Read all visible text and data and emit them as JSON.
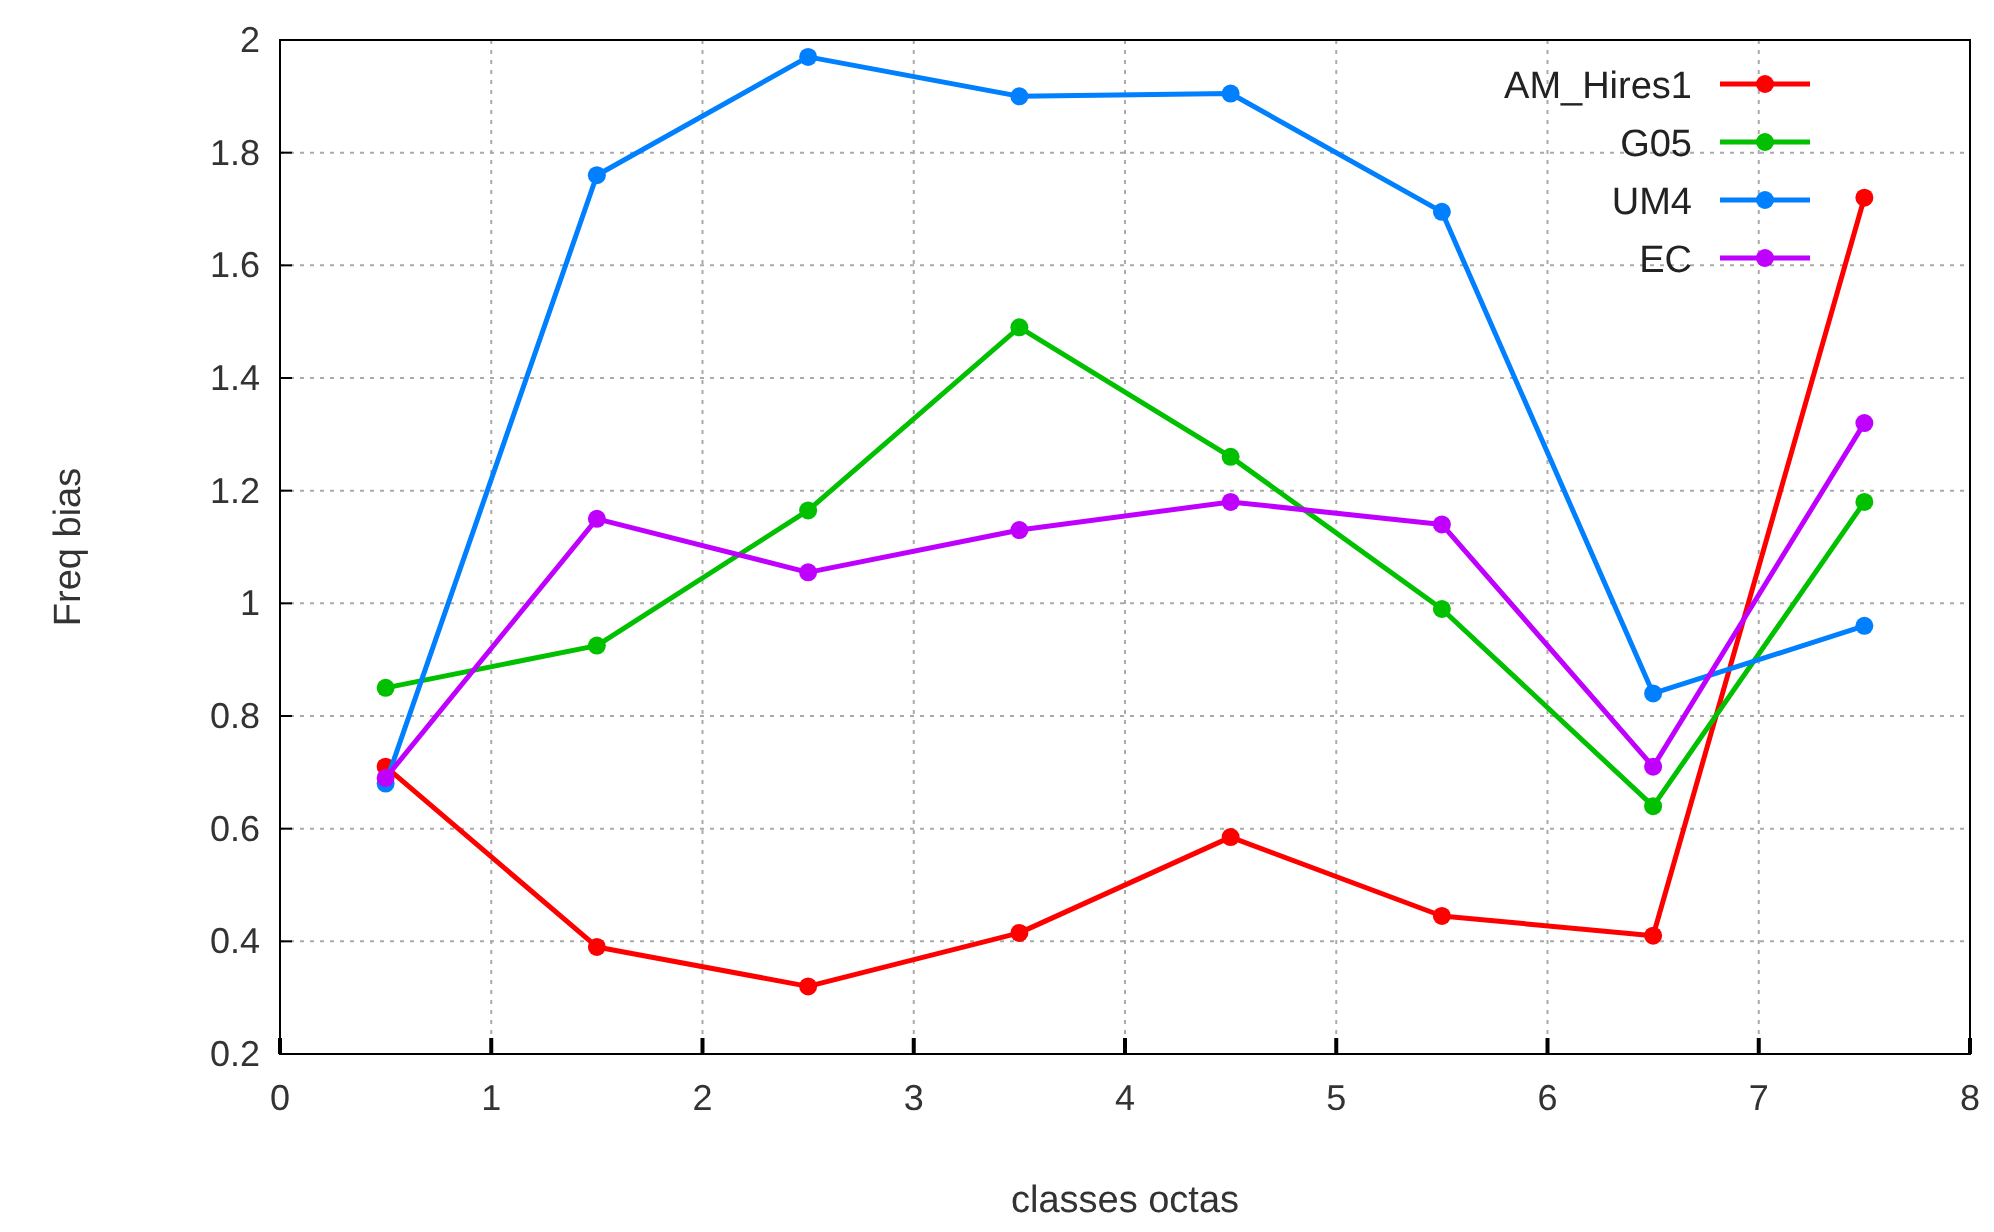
{
  "chart_data": {
    "type": "line",
    "xlabel": "classes octas",
    "ylabel": "Freq bias",
    "x": [
      0.5,
      1.5,
      2.5,
      3.5,
      4.5,
      5.5,
      6.5,
      7.5
    ],
    "series": [
      {
        "name": "AM_Hires1",
        "color": "#ff0000",
        "values": [
          0.71,
          0.39,
          0.32,
          0.415,
          0.585,
          0.445,
          0.41,
          1.72
        ]
      },
      {
        "name": "G05",
        "color": "#00c000",
        "values": [
          0.85,
          0.925,
          1.165,
          1.49,
          1.26,
          0.99,
          0.64,
          1.18
        ]
      },
      {
        "name": "UM4",
        "color": "#0080ff",
        "values": [
          0.68,
          1.76,
          1.97,
          1.9,
          1.905,
          1.695,
          0.84,
          0.96
        ]
      },
      {
        "name": "EC",
        "color": "#c000ff",
        "values": [
          0.69,
          1.15,
          1.055,
          1.13,
          1.18,
          1.14,
          0.71,
          1.32
        ]
      }
    ],
    "xlim": [
      0,
      8
    ],
    "xticks": [
      0,
      1,
      2,
      3,
      4,
      5,
      6,
      7,
      8
    ],
    "ylim": [
      0.2,
      2
    ],
    "yticks": [
      {
        "value": 0.2,
        "label": "0.2"
      },
      {
        "value": 0.4,
        "label": "0.4"
      },
      {
        "value": 0.6,
        "label": "0.6"
      },
      {
        "value": 0.8,
        "label": "0.8"
      },
      1,
      {
        "value": 1.2,
        "label": "1.2"
      },
      {
        "value": 1.4,
        "label": "1.4"
      },
      {
        "value": 1.6,
        "label": "1.6"
      },
      {
        "value": 1.8,
        "label": "1.8"
      },
      2
    ],
    "grid": true,
    "legend": "top right",
    "marker": "circle",
    "line_style": "solid"
  }
}
